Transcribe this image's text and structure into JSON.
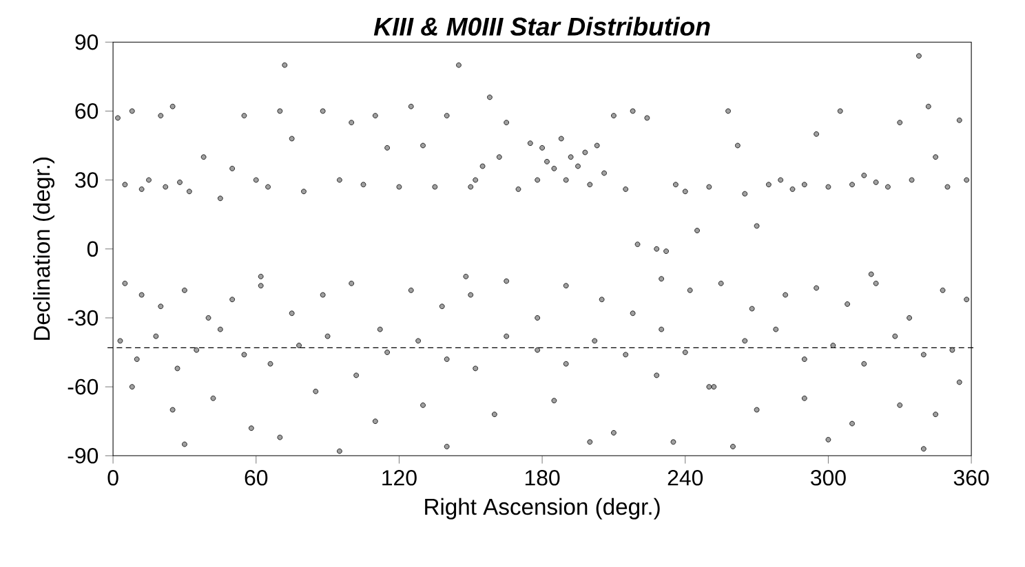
{
  "chart_data": {
    "type": "scatter",
    "title": "KIII & M0III Star Distribution",
    "xlabel": "Right Ascension (degr.)",
    "ylabel": "Declination (degr.)",
    "xlim": [
      0,
      360
    ],
    "ylim": [
      -90,
      90
    ],
    "xticks": [
      0,
      60,
      120,
      180,
      240,
      300,
      360
    ],
    "yticks": [
      90,
      60,
      30,
      0,
      -30,
      -60,
      -90
    ],
    "marker": "circle",
    "ref_lines": [
      {
        "axis": "y",
        "value": -43,
        "color": "#000000",
        "line_style": "dashed"
      }
    ],
    "series": [
      {
        "color": "#a0a0a0",
        "x": [
          2,
          5,
          8,
          12,
          15,
          20,
          22,
          25,
          28,
          32,
          38,
          45,
          50,
          55,
          60,
          65,
          70,
          72,
          75,
          80,
          88,
          95,
          100,
          105,
          110,
          115,
          120,
          125,
          130,
          135,
          140,
          145,
          150,
          152,
          155,
          158,
          162,
          165,
          170,
          175,
          178,
          180,
          182,
          185,
          188,
          190,
          192,
          195,
          198,
          200,
          203,
          206,
          210,
          215,
          218,
          220,
          224,
          228,
          232,
          236,
          240,
          245,
          250,
          258,
          262,
          265,
          270,
          275,
          280,
          285,
          290,
          295,
          300,
          305,
          310,
          315,
          320,
          325,
          330,
          335,
          338,
          342,
          345,
          350,
          355,
          358,
          5,
          12,
          20,
          30,
          40,
          50,
          62,
          75,
          88,
          100,
          112,
          125,
          138,
          150,
          165,
          178,
          190,
          205,
          218,
          230,
          242,
          255,
          268,
          282,
          295,
          308,
          320,
          334,
          348,
          358,
          3,
          10,
          18,
          27,
          35,
          45,
          55,
          66,
          78,
          90,
          102,
          115,
          128,
          140,
          152,
          165,
          178,
          190,
          202,
          215,
          228,
          240,
          252,
          265,
          278,
          290,
          302,
          315,
          328,
          340,
          352,
          8,
          25,
          42,
          58,
          85,
          110,
          130,
          160,
          185,
          210,
          235,
          250,
          270,
          290,
          310,
          330,
          345,
          355,
          30,
          70,
          95,
          140,
          200,
          260,
          300,
          340,
          62,
          148,
          230,
          318
        ],
        "values": [
          57,
          28,
          60,
          26,
          30,
          58,
          27,
          62,
          29,
          25,
          40,
          22,
          35,
          58,
          30,
          27,
          60,
          80,
          48,
          25,
          60,
          30,
          55,
          28,
          58,
          44,
          27,
          62,
          45,
          27,
          58,
          80,
          27,
          30,
          36,
          66,
          40,
          55,
          26,
          46,
          30,
          44,
          38,
          35,
          48,
          30,
          40,
          36,
          42,
          28,
          45,
          33,
          58,
          26,
          60,
          2,
          57,
          0,
          -1,
          28,
          25,
          8,
          27,
          60,
          45,
          24,
          10,
          28,
          30,
          26,
          28,
          50,
          27,
          60,
          28,
          32,
          29,
          27,
          55,
          30,
          84,
          62,
          40,
          27,
          56,
          30,
          -15,
          -20,
          -25,
          -18,
          -30,
          -22,
          -16,
          -28,
          -20,
          -15,
          -35,
          -18,
          -25,
          -20,
          -14,
          -30,
          -16,
          -22,
          -28,
          -35,
          -18,
          -15,
          -26,
          -20,
          -17,
          -24,
          -15,
          -30,
          -18,
          -22,
          -40,
          -48,
          -38,
          -52,
          -44,
          -35,
          -46,
          -50,
          -42,
          -38,
          -55,
          -45,
          -40,
          -48,
          -52,
          -38,
          -44,
          -50,
          -40,
          -46,
          -55,
          -45,
          -60,
          -40,
          -35,
          -48,
          -42,
          -50,
          -38,
          -46,
          -44,
          -60,
          -70,
          -65,
          -78,
          -62,
          -75,
          -68,
          -72,
          -66,
          -80,
          -84,
          -60,
          -70,
          -65,
          -76,
          -68,
          -72,
          -58,
          -85,
          -82,
          -88,
          -86,
          -84,
          -86,
          -83,
          -87,
          -12,
          -12,
          -13,
          -11
        ]
      }
    ]
  }
}
